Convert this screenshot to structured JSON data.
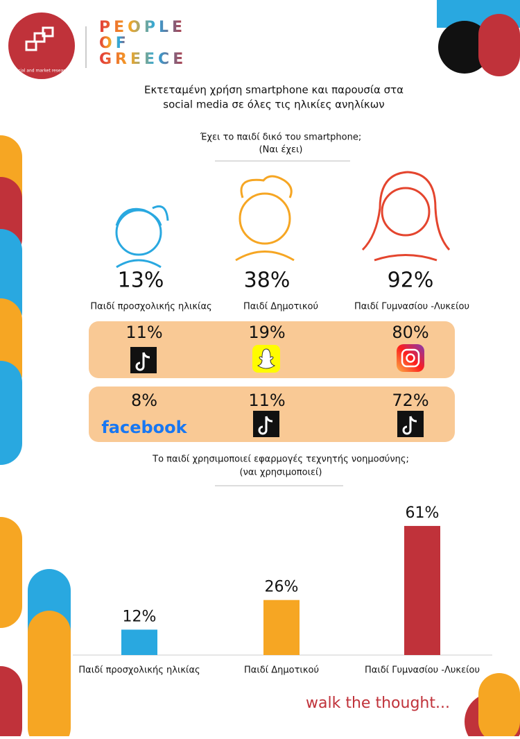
{
  "brand": {
    "name_lines": [
      "PEOPLE",
      "OF",
      "GREECE"
    ],
    "tagline": "social and market research"
  },
  "title": {
    "lines": [
      "Εκτεταμένη χρήση smartphone και παρουσία στα",
      "social media σε όλες τις ηλικίες ανηλίκων"
    ]
  },
  "smartphone": {
    "question": "Έχει το παιδί δικό του smartphone;",
    "note": "(Ναι έχει)",
    "groups": [
      {
        "value": "13%",
        "label": "Παιδί προσχολικής ηλικίας"
      },
      {
        "value": "38%",
        "label": "Παιδί Δημοτικού"
      },
      {
        "value": "92%",
        "label": "Παιδί Γυμνασίου -Λυκείου"
      }
    ]
  },
  "social_rows": [
    [
      {
        "value": "11%"
      },
      {
        "value": "19%"
      },
      {
        "value": "80%"
      }
    ],
    [
      {
        "value": "8%",
        "app": "facebook"
      },
      {
        "value": "11%"
      },
      {
        "value": "72%"
      }
    ]
  ],
  "ai": {
    "question": "Το παιδί χρησιμοποιεί εφαρμογές τεχνητής νοημοσύνης;",
    "note": "(ναι χρησιμοποιεί)"
  },
  "chart_data": {
    "type": "bar",
    "categories": [
      "Παιδί προσχολικής ηλικίας",
      "Παιδί Δημοτικού",
      "Παιδί Γυμνασίου -Λυκείου"
    ],
    "values": [
      12,
      26,
      61
    ],
    "value_labels": [
      "12%",
      "26%",
      "61%"
    ],
    "colors": [
      "#29a8e0",
      "#f6a623",
      "#c0323a"
    ]
  },
  "footer": "walk the thought..."
}
